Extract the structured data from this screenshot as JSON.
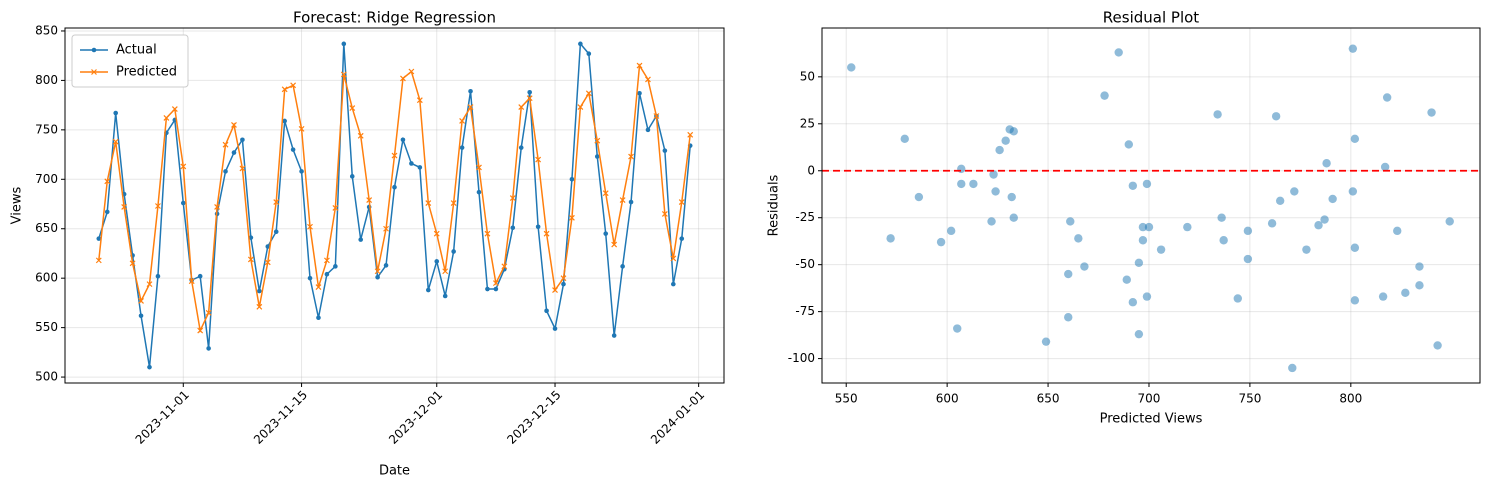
{
  "chart_data": [
    {
      "type": "line",
      "title": "Forecast: Ridge Regression",
      "xlabel": "Date",
      "ylabel": "Views",
      "x": [
        "2023-10-22",
        "2023-10-23",
        "2023-10-24",
        "2023-10-25",
        "2023-10-26",
        "2023-10-27",
        "2023-10-28",
        "2023-10-29",
        "2023-10-30",
        "2023-10-31",
        "2023-11-01",
        "2023-11-02",
        "2023-11-03",
        "2023-11-04",
        "2023-11-05",
        "2023-11-06",
        "2023-11-07",
        "2023-11-08",
        "2023-11-09",
        "2023-11-10",
        "2023-11-11",
        "2023-11-12",
        "2023-11-13",
        "2023-11-14",
        "2023-11-15",
        "2023-11-16",
        "2023-11-17",
        "2023-11-18",
        "2023-11-19",
        "2023-11-20",
        "2023-11-21",
        "2023-11-22",
        "2023-11-23",
        "2023-11-24",
        "2023-11-25",
        "2023-11-26",
        "2023-11-27",
        "2023-11-28",
        "2023-11-29",
        "2023-11-30",
        "2023-12-01",
        "2023-12-02",
        "2023-12-03",
        "2023-12-04",
        "2023-12-05",
        "2023-12-06",
        "2023-12-07",
        "2023-12-08",
        "2023-12-09",
        "2023-12-10",
        "2023-12-11",
        "2023-12-12",
        "2023-12-13",
        "2023-12-14",
        "2023-12-15",
        "2023-12-16",
        "2023-12-17",
        "2023-12-18",
        "2023-12-19",
        "2023-12-20",
        "2023-12-21",
        "2023-12-22",
        "2023-12-23",
        "2023-12-24",
        "2023-12-25",
        "2023-12-26",
        "2023-12-27",
        "2023-12-28",
        "2023-12-29",
        "2023-12-30",
        "2023-12-31"
      ],
      "series": [
        {
          "name": "Actual",
          "color": "#1f77b4",
          "marker": "circle",
          "values": [
            640,
            667,
            767,
            685,
            623,
            562,
            510,
            602,
            747,
            760,
            676,
            598,
            602,
            529,
            665,
            708,
            727,
            740,
            641,
            587,
            632,
            647,
            759,
            730,
            708,
            600,
            560,
            604,
            612,
            837,
            703,
            639,
            672,
            601,
            613,
            692,
            740,
            716,
            712,
            588,
            617,
            582,
            627,
            732,
            789,
            687,
            589,
            589,
            609,
            651,
            732,
            788,
            652,
            567,
            549,
            594,
            700,
            837,
            827,
            723,
            645,
            542,
            612,
            677,
            787,
            750,
            764,
            729,
            594,
            640,
            734
          ]
        },
        {
          "name": "Predicted",
          "color": "#ff7f0e",
          "marker": "x",
          "values": [
            618,
            698,
            738,
            672,
            615,
            577,
            594,
            673,
            762,
            771,
            713,
            597,
            547,
            565,
            672,
            735,
            755,
            711,
            619,
            571,
            616,
            677,
            791,
            795,
            751,
            652,
            591,
            618,
            671,
            806,
            772,
            744,
            679,
            607,
            650,
            724,
            802,
            809,
            780,
            676,
            645,
            607,
            676,
            759,
            773,
            712,
            645,
            595,
            612,
            681,
            773,
            782,
            720,
            645,
            588,
            600,
            661,
            773,
            787,
            739,
            686,
            634,
            679,
            723,
            815,
            801,
            764,
            665,
            620,
            677,
            745
          ]
        }
      ],
      "xlim": [
        "2023-10-18",
        "2024-01-04"
      ],
      "xticks": [
        "2023-11-01",
        "2023-11-15",
        "2023-12-01",
        "2023-12-15",
        "2024-01-01"
      ],
      "xtick_rotation": 45,
      "ylim": [
        494,
        853
      ],
      "yticks": [
        500,
        550,
        600,
        650,
        700,
        750,
        800,
        850
      ],
      "grid": true,
      "legend": "upper-left"
    },
    {
      "type": "scatter",
      "title": "Residual Plot",
      "xlabel": "Predicted Views",
      "ylabel": "Residuals",
      "color": "#1f77b4",
      "x": [
        552.5,
        572,
        579,
        586,
        597,
        602,
        605,
        607,
        607,
        613,
        622,
        623,
        624,
        626,
        629,
        631,
        633,
        632,
        633,
        649,
        660,
        660,
        661,
        665,
        668,
        678,
        685,
        689,
        690,
        692,
        692,
        695,
        695,
        697,
        697,
        699,
        699,
        700,
        706,
        719,
        734,
        736,
        737,
        744,
        749,
        749,
        761,
        763,
        765,
        771,
        772,
        778,
        784,
        787,
        788,
        791,
        801,
        801,
        802,
        802,
        802,
        816,
        818,
        817,
        823,
        827,
        834,
        834,
        840,
        843,
        849
      ],
      "values": [
        55,
        -36,
        17,
        -14,
        -38,
        -32,
        -84,
        1,
        -7,
        -7,
        -27,
        -2,
        -11,
        11,
        16,
        22,
        21,
        -14,
        -25,
        -91,
        -78,
        -55,
        -27,
        -36,
        -51,
        40,
        63,
        -58,
        14,
        -8,
        -70,
        -49,
        -87,
        -37,
        -30,
        -7,
        -67,
        -30,
        -42,
        -30,
        30,
        -25,
        -37,
        -68,
        -32,
        -47,
        -28,
        29,
        -16,
        -105,
        -11,
        -42,
        -29,
        -26,
        4,
        -15,
        -11,
        65,
        -69,
        17,
        -41,
        -67,
        39,
        2,
        -32,
        -65,
        -51,
        -61,
        31,
        -93,
        -27
      ],
      "hline": 0,
      "hline_color": "#ff0000",
      "xlim": [
        538,
        864
      ],
      "xticks": [
        550,
        600,
        650,
        700,
        750,
        800
      ],
      "ylim": [
        -113,
        76
      ],
      "yticks": [
        -100,
        -75,
        -50,
        -25,
        0,
        25,
        50
      ],
      "grid": true
    }
  ]
}
